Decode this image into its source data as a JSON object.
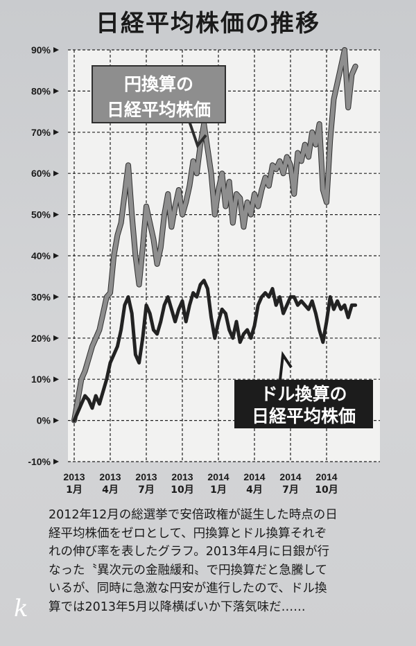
{
  "title": "日経平均株価の推移",
  "chart_data": {
    "type": "line",
    "title": "日経平均株価の推移",
    "ylim": [
      -10,
      90
    ],
    "y_ticks": [
      "90%",
      "80%",
      "70%",
      "60%",
      "50%",
      "40%",
      "30%",
      "20%",
      "10%",
      "0%",
      "-10%"
    ],
    "x_ticks": [
      {
        "year": "2013",
        "month": "1月"
      },
      {
        "year": "2013",
        "month": "4月"
      },
      {
        "year": "2013",
        "month": "7月"
      },
      {
        "year": "2013",
        "month": "10月"
      },
      {
        "year": "2014",
        "month": "1月"
      },
      {
        "year": "2014",
        "month": "4月"
      },
      {
        "year": "2014",
        "month": "7月"
      },
      {
        "year": "2014",
        "month": "10月"
      }
    ],
    "grid": true,
    "x": [
      0,
      0.3,
      0.6,
      0.9,
      1.2,
      1.5,
      1.8,
      2.1,
      2.4,
      2.7,
      3,
      3.3,
      3.6,
      3.9,
      4.2,
      4.5,
      4.8,
      5.1,
      5.4,
      5.7,
      6,
      6.3,
      6.6,
      6.9,
      7.2,
      7.5,
      7.8,
      8.1,
      8.4,
      8.7,
      9,
      9.3,
      9.6,
      9.9,
      10.2,
      10.5,
      10.8,
      11.1,
      11.4,
      11.7,
      12,
      12.3,
      12.6,
      12.9,
      13.2,
      13.5,
      13.8,
      14.1,
      14.4,
      14.7,
      15,
      15.3,
      15.6,
      15.9,
      16.2,
      16.5,
      16.8,
      17.1,
      17.4,
      17.7,
      18,
      18.3,
      18.6,
      18.9,
      19.2,
      19.5,
      19.8,
      20.1,
      20.4,
      20.7,
      21,
      21.3,
      21.6,
      21.9,
      22.2,
      22.5,
      22.8,
      23.1,
      23.4
    ],
    "series": [
      {
        "name": "円換算の日経平均株価",
        "label_lines": [
          "円換算の",
          "日経平均株価"
        ],
        "color": "#8e8e8e",
        "values": [
          0,
          5,
          10,
          12,
          15,
          18,
          20,
          22,
          26,
          30,
          31,
          40,
          45,
          48,
          55,
          62,
          50,
          40,
          33,
          42,
          52,
          48,
          44,
          38,
          42,
          50,
          55,
          47,
          52,
          56,
          50,
          53,
          57,
          63,
          60,
          67,
          72,
          66,
          60,
          50,
          56,
          60,
          52,
          58,
          48,
          55,
          54,
          47,
          53,
          50,
          55,
          52,
          56,
          59,
          57,
          62,
          61,
          63,
          60,
          64,
          62,
          55,
          65,
          63,
          67,
          64,
          70,
          67,
          72,
          56,
          53,
          68,
          78,
          82,
          86,
          90,
          76,
          84,
          86
        ]
      },
      {
        "name": "ドル換算の日経平均株価",
        "label_lines": [
          "ドル換算の",
          "日経平均株価"
        ],
        "color": "#222222",
        "values": [
          0,
          2,
          4,
          6,
          5,
          3,
          6,
          4,
          7,
          10,
          14,
          16,
          18,
          22,
          28,
          30,
          26,
          16,
          14,
          20,
          28,
          26,
          22,
          21,
          24,
          28,
          30,
          27,
          24,
          27,
          29,
          24,
          28,
          31,
          30,
          33,
          34,
          32,
          25,
          20,
          24,
          27,
          26,
          22,
          20,
          24,
          19,
          21,
          22,
          20,
          23,
          28,
          30,
          31,
          30,
          32,
          28,
          30,
          26,
          28,
          30,
          30,
          28,
          29,
          28,
          27,
          29,
          26,
          22,
          19,
          24,
          30,
          27,
          29,
          27,
          28,
          25,
          28,
          28
        ]
      }
    ]
  },
  "caption_lines": [
    "2012年12月の総選挙で安倍政権が誕生した時点の日",
    "経平均株価をゼロとして、円換算とドル換算それぞ",
    "れの伸び率を表したグラフ。2013年4月に日銀が行",
    "なった〝異次元の金融緩和〟で円換算だと急騰して",
    "いるが、同時に急激な円安が進行したので、ドル換",
    "算では2013年5月以降横ばいか下落気味だ……"
  ],
  "watermark": "k"
}
